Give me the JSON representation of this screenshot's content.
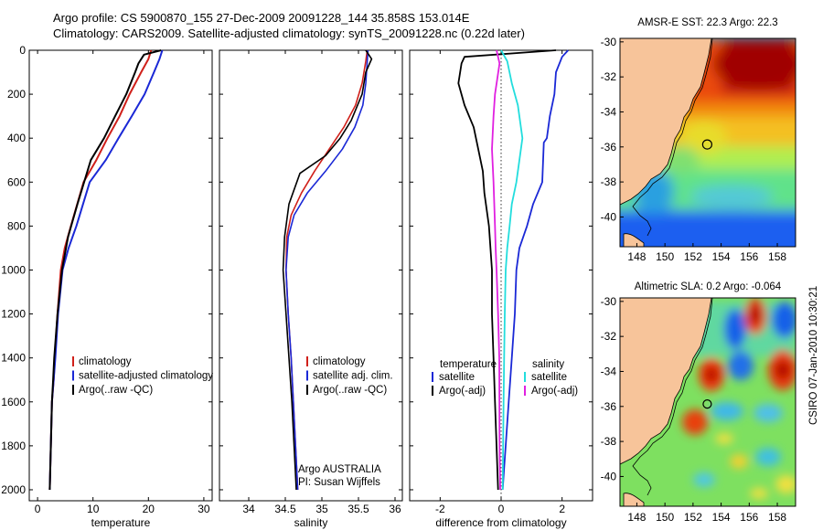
{
  "header": {
    "line1": "Argo profile: CS 5900870_155 27-Dec-2009 20091228_144 35.858S 153.014E",
    "line2": "Climatology: CARS2009. Satellite-adjusted climatology: synTS_20091228.nc (0.22d later)"
  },
  "colors": {
    "climatology": "#d0201a",
    "satellite": "#1a28d6",
    "argo": "#000000",
    "sal_satellite": "#22dddd",
    "sal_argo": "#e020e0",
    "land": "#f7c49a"
  },
  "depth_axis": {
    "ticks": [
      "0",
      "200",
      "400",
      "600",
      "800",
      "1000",
      "1200",
      "1400",
      "1600",
      "1800",
      "2000"
    ]
  },
  "chart_data": [
    {
      "type": "line",
      "title": "",
      "xlabel": "temperature",
      "ylabel": "",
      "xlim": [
        -1.5,
        31.5
      ],
      "ylim": [
        2050,
        0
      ],
      "xticks": [
        "0",
        "10",
        "20",
        "30"
      ],
      "xtick_values": [
        0,
        10,
        20,
        30
      ],
      "legend": [
        "climatology",
        "satellite-adjusted climatology",
        "Argo(..raw -QC)"
      ],
      "series": [
        {
          "name": "climatology",
          "color": "#d0201a",
          "x": [
            20.5,
            20.0,
            18.7,
            16.6,
            14.8,
            12.6,
            10.6,
            8.3,
            6.0,
            4.9,
            4.2,
            3.6,
            3.1,
            2.9,
            2.6,
            2.4,
            2.3,
            2.2
          ],
          "y": [
            0,
            40,
            100,
            200,
            300,
            400,
            500,
            600,
            800,
            900,
            1000,
            1200,
            1400,
            1500,
            1600,
            1800,
            1900,
            2000
          ]
        },
        {
          "name": "satellite-adjusted climatology",
          "color": "#1a28d6",
          "x": [
            22.5,
            22.0,
            21.0,
            19.3,
            17.0,
            14.6,
            12.3,
            9.4,
            7.0,
            5.6,
            4.5,
            3.7,
            3.2,
            2.9,
            2.6,
            2.4,
            2.3,
            2.2
          ],
          "y": [
            0,
            40,
            100,
            200,
            300,
            400,
            500,
            600,
            800,
            900,
            1000,
            1200,
            1400,
            1500,
            1600,
            1800,
            1900,
            2000
          ]
        },
        {
          "name": "Argo(..raw -QC)",
          "color": "#000000",
          "x": [
            22.3,
            19.2,
            18.2,
            17.6,
            16.0,
            14.0,
            12.0,
            9.6,
            7.2,
            5.5,
            4.4,
            3.6,
            3.0,
            2.8,
            2.6,
            2.4,
            2.3,
            2.2
          ],
          "y": [
            0,
            20,
            60,
            100,
            200,
            300,
            400,
            500,
            700,
            850,
            1000,
            1200,
            1400,
            1500,
            1600,
            1800,
            1900,
            2000
          ]
        }
      ]
    },
    {
      "type": "line",
      "xlabel": "salinity",
      "xlim": [
        33.6,
        36.1
      ],
      "ylim": [
        2050,
        0
      ],
      "xticks": [
        "34",
        "34.5",
        "35",
        "35.5",
        "36"
      ],
      "xtick_values": [
        34,
        34.5,
        35,
        35.5,
        36
      ],
      "legend": [
        "climatology",
        "satellite adj. clim.",
        "Argo(..raw -QC)"
      ],
      "annotations": [
        "Argo AUSTRALIA",
        "PI: Susan Wijffels"
      ],
      "series": [
        {
          "name": "climatology",
          "color": "#d0201a",
          "x": [
            35.62,
            35.6,
            35.55,
            35.46,
            35.3,
            35.1,
            34.9,
            34.72,
            34.58,
            34.52,
            34.51,
            34.54,
            34.58,
            34.61,
            34.64,
            34.67
          ],
          "y": [
            0,
            50,
            150,
            250,
            350,
            450,
            550,
            650,
            750,
            850,
            1000,
            1200,
            1400,
            1600,
            1800,
            2000
          ]
        },
        {
          "name": "satellite adj. clim.",
          "color": "#1a28d6",
          "x": [
            35.63,
            35.62,
            35.6,
            35.56,
            35.45,
            35.28,
            35.05,
            34.8,
            34.62,
            34.54,
            34.51,
            34.54,
            34.58,
            34.61,
            34.64,
            34.67
          ],
          "y": [
            0,
            50,
            150,
            250,
            350,
            450,
            550,
            650,
            750,
            850,
            1000,
            1200,
            1400,
            1600,
            1800,
            2000
          ]
        },
        {
          "name": "Argo(..raw -QC)",
          "color": "#000000",
          "x": [
            35.6,
            35.68,
            35.6,
            35.55,
            35.4,
            35.25,
            35.05,
            34.7,
            34.55,
            34.49,
            34.47,
            34.51,
            34.55,
            34.59,
            34.62,
            34.65
          ],
          "y": [
            0,
            40,
            100,
            200,
            320,
            400,
            480,
            560,
            700,
            850,
            1000,
            1200,
            1400,
            1600,
            1800,
            2000
          ]
        }
      ]
    },
    {
      "type": "line",
      "xlabel": "difference from climatology",
      "xlim": [
        -3.0,
        3.0
      ],
      "ylim": [
        2050,
        0
      ],
      "xticks": [
        "-2",
        "0",
        "2"
      ],
      "xtick_values": [
        -2,
        0,
        2
      ],
      "legend_titles": [
        "temperature",
        "salinity"
      ],
      "legend": [
        "satellite",
        "Argo(-adj)",
        "satellite",
        "Argo(-adj)"
      ],
      "series": [
        {
          "name": "temperature satellite",
          "color": "#1a28d6",
          "x": [
            2.2,
            2.0,
            1.8,
            1.75,
            1.6,
            1.5,
            1.4,
            1.35,
            1.05,
            0.85,
            0.6,
            0.5,
            0.45,
            0.35,
            0.25,
            0.15,
            0.1,
            0.05
          ],
          "y": [
            0,
            30,
            100,
            200,
            300,
            400,
            420,
            600,
            700,
            800,
            900,
            1000,
            1200,
            1400,
            1600,
            1800,
            1900,
            2000
          ]
        },
        {
          "name": "temperature Argo(-adj)",
          "color": "#000000",
          "x": [
            1.8,
            -1.2,
            -1.3,
            -1.4,
            -1.2,
            -0.9,
            -0.75,
            -0.6,
            -0.55,
            -0.4,
            -0.3,
            -0.3,
            -0.25,
            -0.2,
            -0.15,
            -0.1
          ],
          "y": [
            0,
            30,
            60,
            150,
            250,
            350,
            450,
            550,
            650,
            800,
            1000,
            1200,
            1400,
            1600,
            1800,
            2000
          ]
        },
        {
          "name": "salinity satellite",
          "color": "#22dddd",
          "x": [
            0.0,
            0.2,
            0.35,
            0.55,
            0.7,
            0.6,
            0.5,
            0.35,
            0.28,
            0.2,
            0.15,
            0.12,
            0.1,
            0.08,
            0.05
          ],
          "y": [
            0,
            50,
            150,
            250,
            400,
            500,
            600,
            700,
            800,
            900,
            1000,
            1200,
            1400,
            1600,
            2000
          ]
        },
        {
          "name": "salinity Argo(-adj)",
          "color": "#e020e0",
          "x": [
            -0.15,
            -0.05,
            -0.2,
            -0.25,
            -0.3,
            -0.25,
            -0.2,
            -0.18,
            -0.15,
            -0.1,
            -0.06,
            -0.05,
            -0.03
          ],
          "y": [
            0,
            60,
            200,
            300,
            450,
            600,
            800,
            900,
            1000,
            1200,
            1400,
            1800,
            2000
          ]
        }
      ]
    },
    {
      "type": "heatmap",
      "title": "AMSR-E SST: 22.3 Argo: 22.3",
      "xlim": [
        146.8,
        159.3
      ],
      "ylim": [
        -41.7,
        -29.8
      ],
      "xticks": [
        "148",
        "150",
        "152",
        "154",
        "156",
        "158"
      ],
      "xtick_values": [
        148,
        150,
        152,
        154,
        156,
        158
      ],
      "yticks": [
        "-30",
        "-32",
        "-34",
        "-36",
        "-38",
        "-40"
      ],
      "ytick_values": [
        -30,
        -32,
        -34,
        -36,
        -38,
        -40
      ],
      "marker": {
        "lon": 153.014,
        "lat": -35.858
      }
    },
    {
      "type": "heatmap",
      "title": "Altimetric SLA: 0.2 Argo: -0.064",
      "xlim": [
        146.8,
        159.3
      ],
      "ylim": [
        -41.7,
        -29.8
      ],
      "xticks": [
        "148",
        "150",
        "152",
        "154",
        "156",
        "158"
      ],
      "xtick_values": [
        148,
        150,
        152,
        154,
        156,
        158
      ],
      "yticks": [
        "-30",
        "-32",
        "-34",
        "-36",
        "-38",
        "-40"
      ],
      "ytick_values": [
        -30,
        -32,
        -34,
        -36,
        -38,
        -40
      ],
      "marker": {
        "lon": 153.014,
        "lat": -35.858
      }
    }
  ],
  "footer": {
    "stamp": "CSIRO 07-Jan-2010 10:30:21"
  }
}
